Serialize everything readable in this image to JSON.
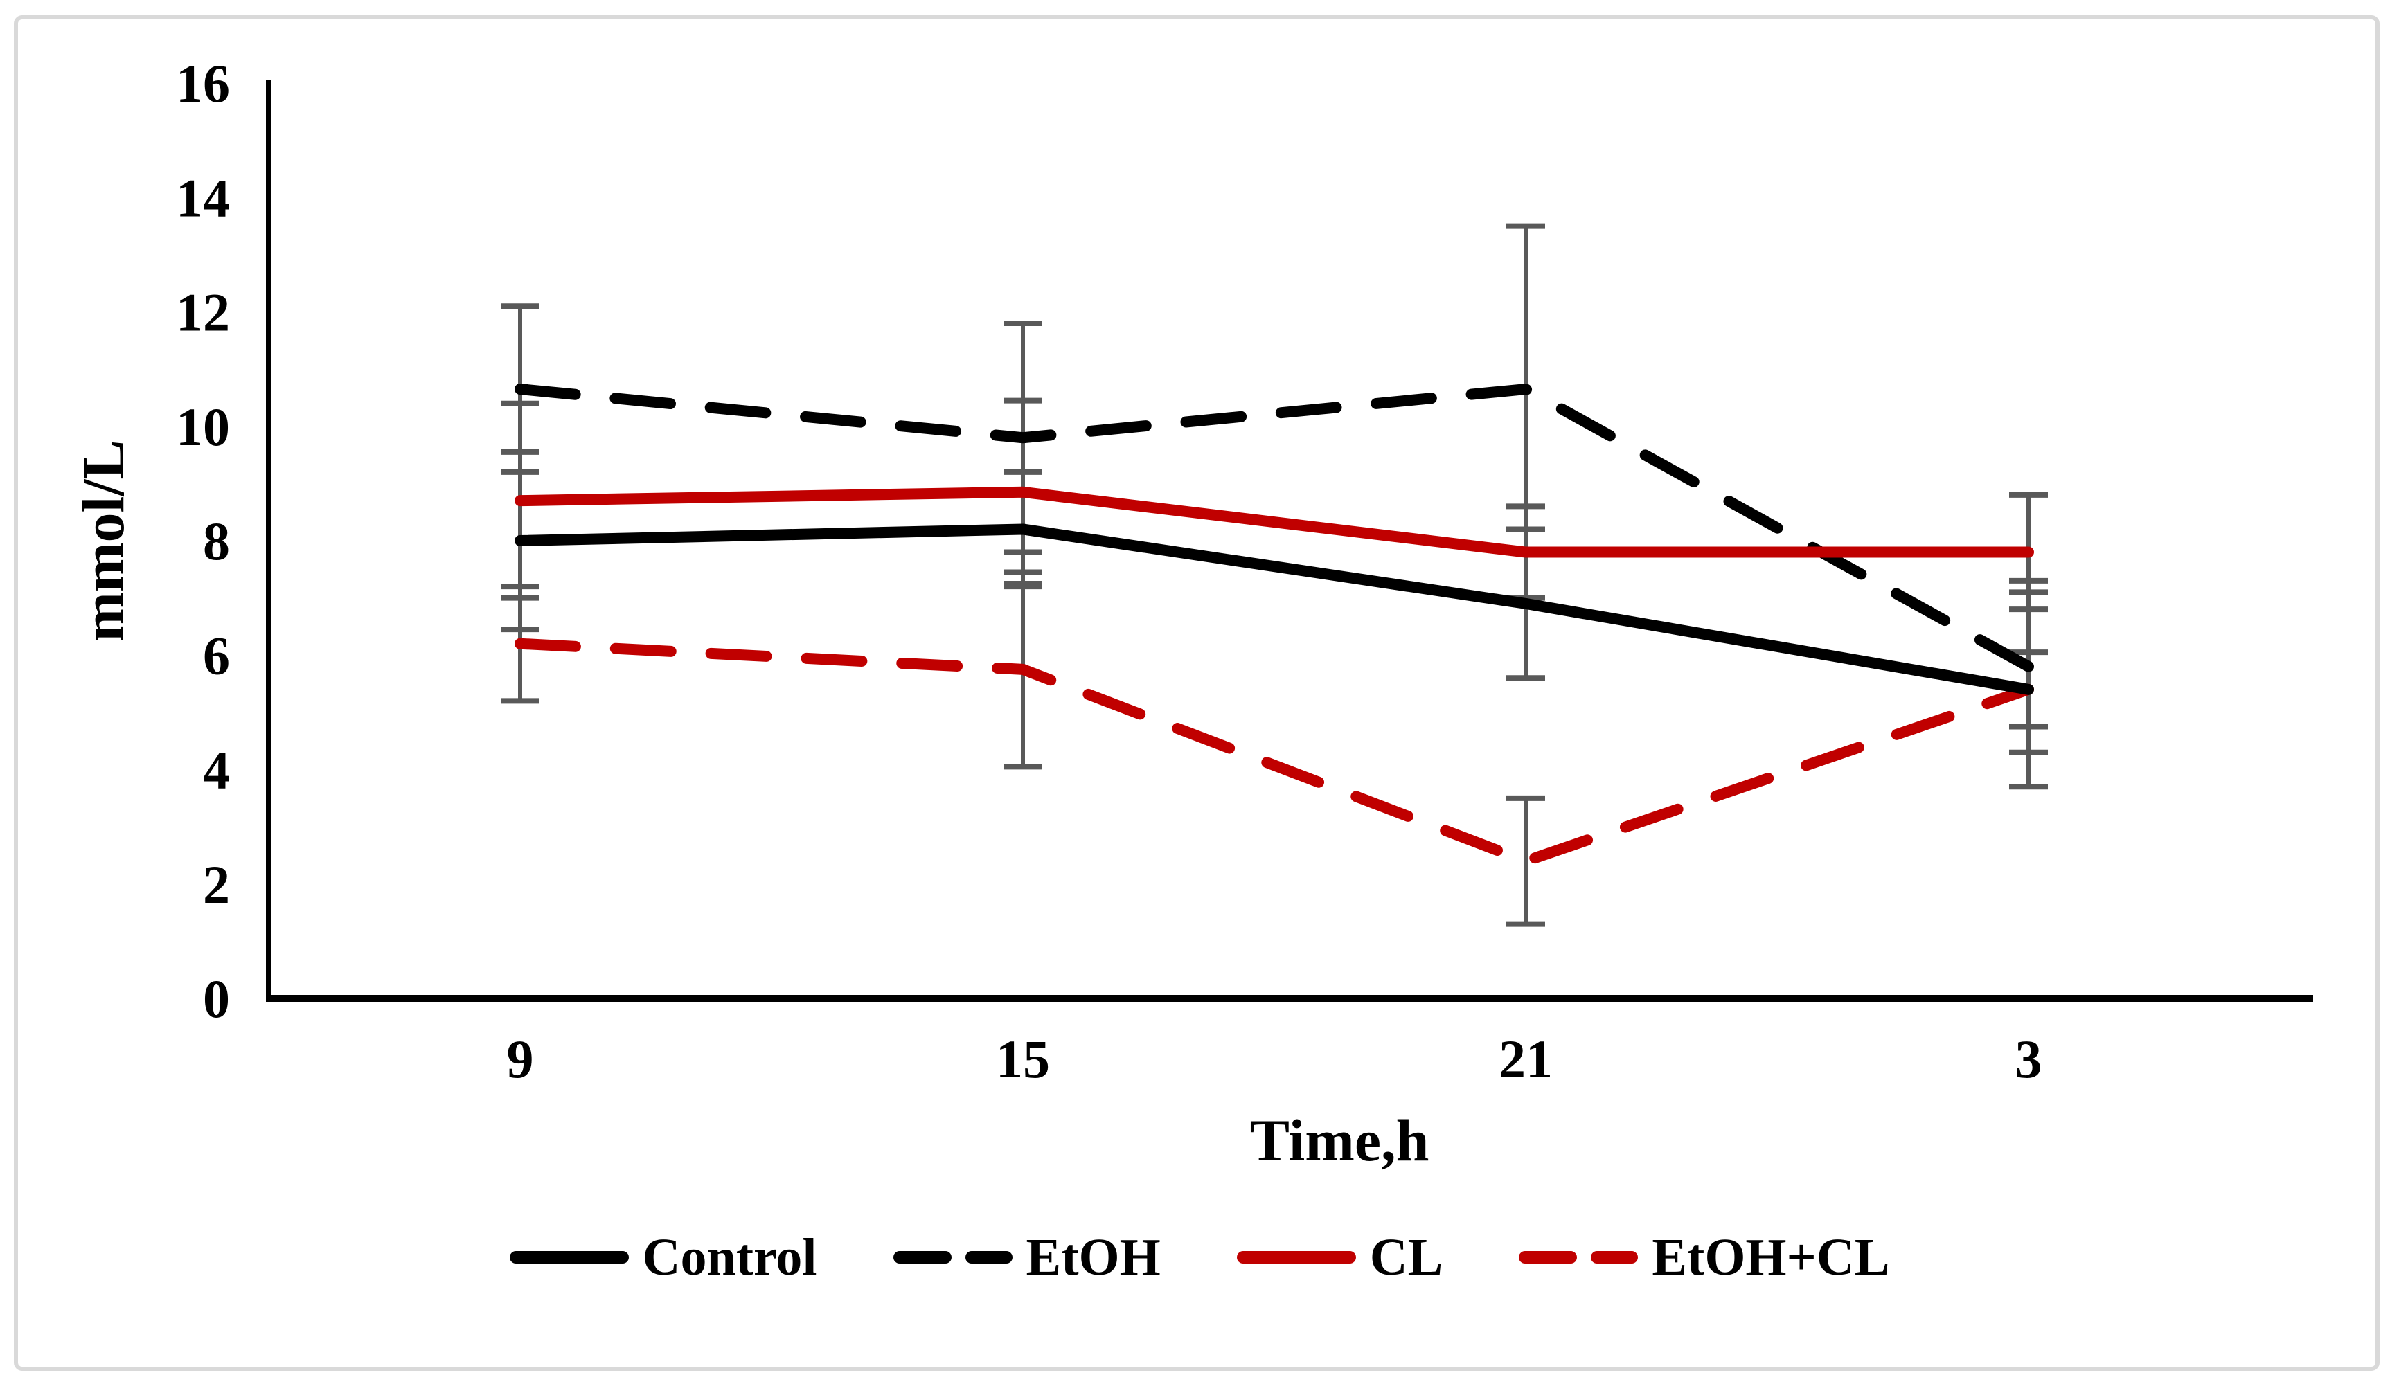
{
  "figure": {
    "background": "#FFFFFF",
    "border_color": "#D9D9D9"
  },
  "chart_data": {
    "type": "line",
    "title": "",
    "ylabel": "mmol/L",
    "xlabel": "Time,h",
    "categories": [
      "9",
      "15",
      "21",
      "3"
    ],
    "ylim": [
      0,
      16
    ],
    "y_ticks": [
      "0",
      "2",
      "4",
      "6",
      "8",
      "10",
      "12",
      "14",
      "16"
    ],
    "grid": false,
    "legend_position": "bottom",
    "axis_color": "#000000",
    "error_bar_color": "#595959",
    "series": [
      {
        "name": "Control",
        "color": "#000000",
        "style": "solid",
        "values": [
          8.0,
          8.2,
          6.9,
          5.4
        ],
        "errors": [
          1.55,
          1.0,
          1.3,
          1.7
        ]
      },
      {
        "name": "EtOH",
        "color": "#000000",
        "style": "dashed",
        "values": [
          10.65,
          9.8,
          10.65,
          5.8
        ],
        "errors": [
          1.45,
          2.0,
          2.85,
          1.5
        ]
      },
      {
        "name": "CL",
        "color": "#C00000",
        "style": "solid",
        "values": [
          8.7,
          8.85,
          7.8,
          7.8
        ],
        "errors": [
          1.7,
          1.6,
          0.8,
          1.0
        ]
      },
      {
        "name": "EtOH+CL",
        "color": "#C00000",
        "style": "dashed",
        "values": [
          6.2,
          5.75,
          2.4,
          5.4
        ],
        "errors": [
          1.0,
          1.7,
          1.1,
          0.65
        ]
      }
    ]
  }
}
